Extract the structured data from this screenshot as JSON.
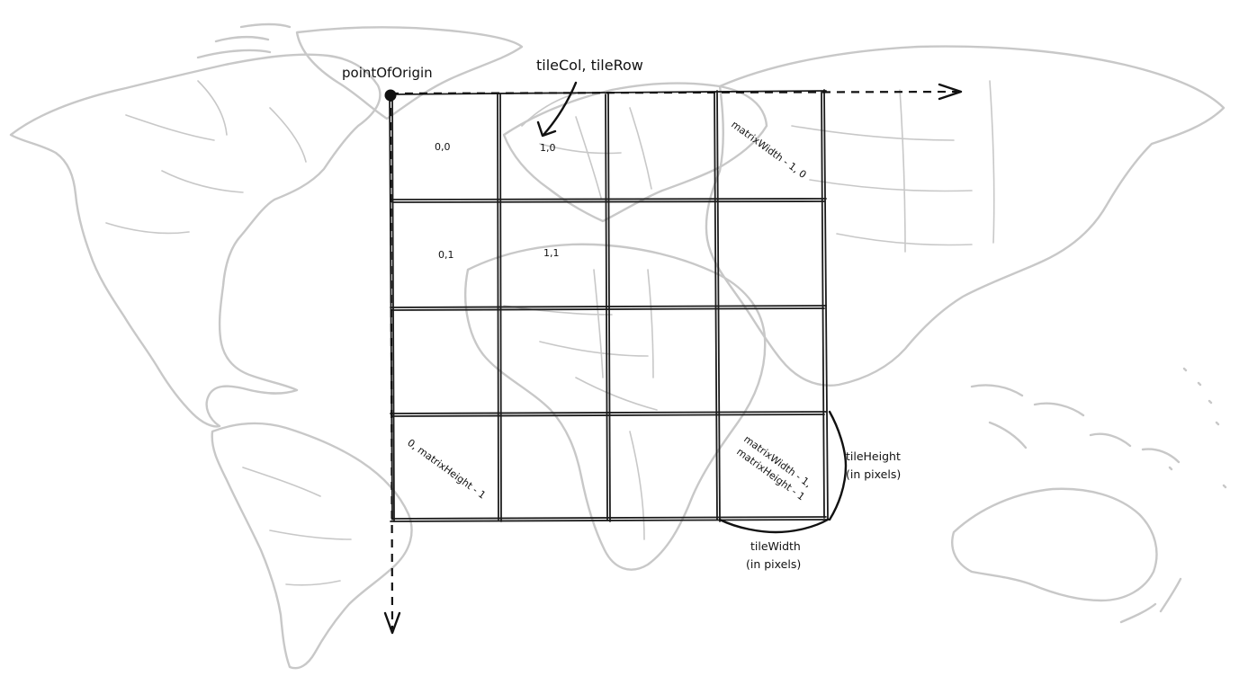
{
  "labels": {
    "point_of_origin": "pointOfOrigin",
    "tile_col_row": "tileCol, tileRow",
    "tile_height_line1": "tileHeight",
    "tile_height_line2": "(in pixels)",
    "tile_width_line1": "tileWidth",
    "tile_width_line2": "(in pixels)"
  },
  "cells": {
    "c00": "0,0",
    "c10": "1,0",
    "c01": "0,1",
    "c11": "1,1",
    "top_right_line1": "matrixWidth - 1, 0",
    "bottom_left_line1": "0, matrixHeight - 1",
    "bottom_right_line1": "matrixWidth - 1,",
    "bottom_right_line2": "matrixHeight - 1"
  },
  "grid": {
    "columns": 4,
    "rows": 4
  },
  "colors": {
    "ink": "#111111",
    "map": "#c8c8c8"
  },
  "icons": {
    "origin": "origin-dot-icon",
    "x_axis": "arrow-right-icon",
    "y_axis": "arrow-down-icon",
    "pointer": "curved-arrow-icon"
  }
}
